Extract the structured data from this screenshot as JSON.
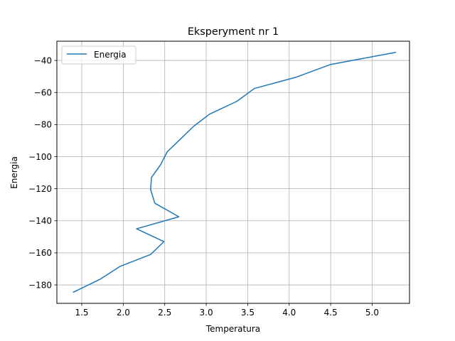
{
  "chart_data": {
    "type": "line",
    "title": "Eksperyment nr 1",
    "xlabel": "Temperatura",
    "ylabel": "Energia",
    "xlim": [
      1.2,
      5.45
    ],
    "ylim": [
      -191.5,
      -28
    ],
    "xticks": [
      1.5,
      2.0,
      2.5,
      3.0,
      3.5,
      4.0,
      4.5,
      5.0
    ],
    "xtick_labels": [
      "1.5",
      "2.0",
      "2.5",
      "3.0",
      "3.5",
      "4.0",
      "4.5",
      "5.0"
    ],
    "yticks": [
      -180,
      -160,
      -140,
      -120,
      -100,
      -80,
      -60,
      -40
    ],
    "ytick_labels": [
      "−180",
      "−160",
      "−140",
      "−120",
      "−100",
      "−80",
      "−60",
      "−40"
    ],
    "grid": true,
    "legend_position": "upper-left",
    "series": [
      {
        "name": "Energia",
        "color": "#1f77b4",
        "x": [
          1.4,
          1.72,
          1.96,
          2.33,
          2.49,
          2.16,
          2.67,
          2.38,
          2.33,
          2.34,
          2.45,
          2.53,
          2.69,
          2.85,
          3.04,
          3.37,
          3.58,
          4.08,
          4.5,
          5.28
        ],
        "y": [
          -184.5,
          -176.5,
          -168.5,
          -161,
          -153,
          -145,
          -137.5,
          -129,
          -120.5,
          -113,
          -105,
          -97,
          -89,
          -81,
          -73.5,
          -65.5,
          -57.5,
          -50.5,
          -42.5,
          -35
        ]
      }
    ]
  }
}
